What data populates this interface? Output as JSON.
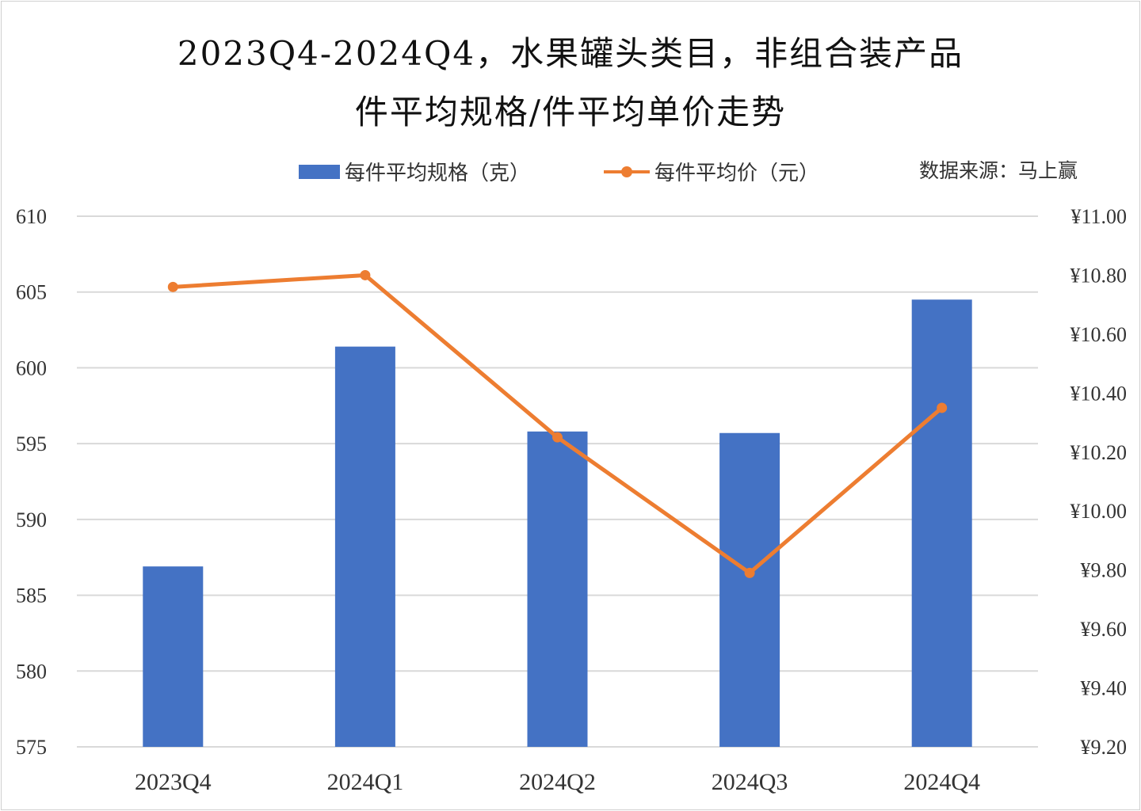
{
  "chart_data": {
    "type": "bar+line",
    "title_line1": "2023Q4-2024Q4，水果罐头类目，非组合装产品",
    "title_line2": "件平均规格/件平均单价走势",
    "source": "数据来源：马上赢",
    "categories": [
      "2023Q4",
      "2024Q1",
      "2024Q2",
      "2024Q3",
      "2024Q4"
    ],
    "series": [
      {
        "name": "每件平均规格（克）",
        "type": "bar",
        "axis": "left",
        "color": "#4472C4",
        "values": [
          586.9,
          601.4,
          595.8,
          595.7,
          604.5
        ]
      },
      {
        "name": "每件平均价（元）",
        "type": "line",
        "axis": "right",
        "color": "#ED7D31",
        "values": [
          10.76,
          10.8,
          10.25,
          9.79,
          10.35
        ]
      }
    ],
    "left_axis": {
      "ylim": [
        575,
        610
      ],
      "ticks": [
        "575",
        "580",
        "585",
        "590",
        "595",
        "600",
        "605",
        "610"
      ]
    },
    "right_axis": {
      "ylim": [
        9.2,
        11.0
      ],
      "ticks": [
        "¥9.20",
        "¥9.40",
        "¥9.60",
        "¥9.80",
        "¥10.00",
        "¥10.20",
        "¥10.40",
        "¥10.60",
        "¥10.80",
        "¥11.00"
      ]
    },
    "grid": true,
    "legend_position": "top"
  }
}
